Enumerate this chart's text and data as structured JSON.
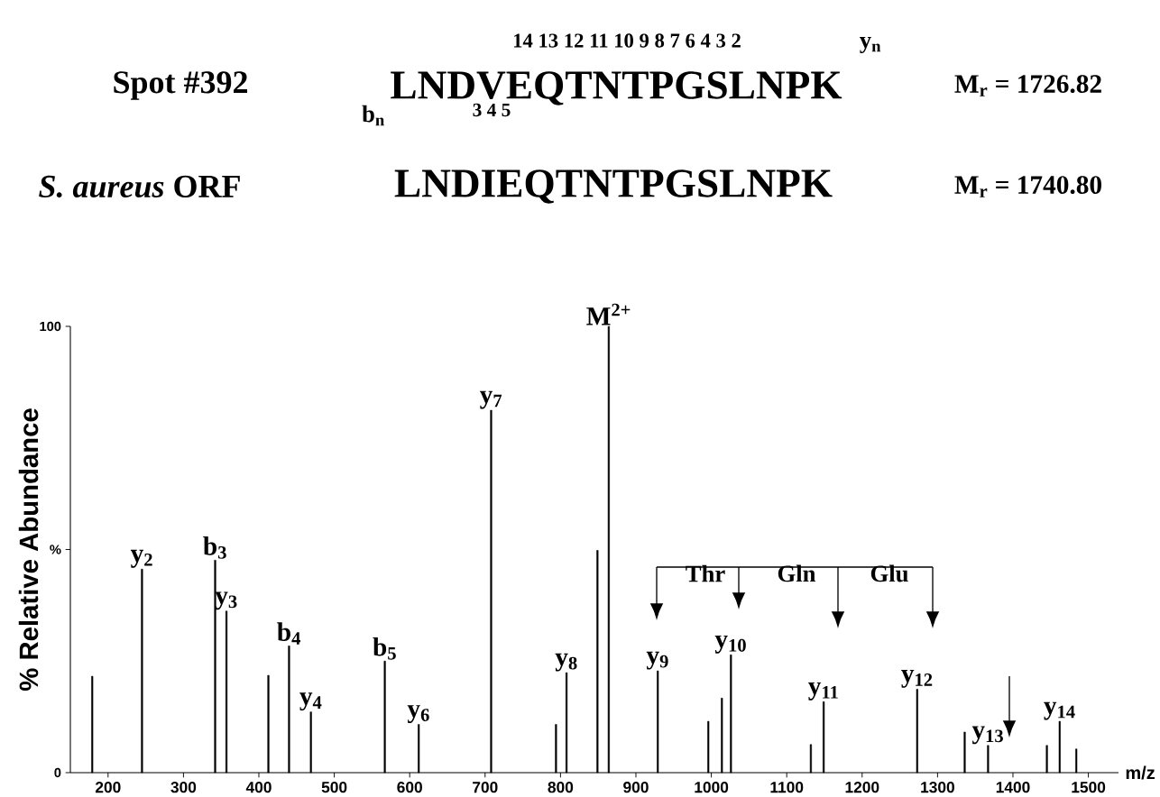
{
  "chart_data": {
    "type": "bar",
    "xlabel": "m/z",
    "ylabel": "% Relative Abundance",
    "x": [
      179,
      245,
      342,
      357,
      412.6,
      440,
      469,
      567,
      612,
      708,
      794,
      808,
      849,
      864,
      929,
      996,
      1014,
      1026,
      1132,
      1149,
      1273,
      1336,
      1367,
      1445,
      1462,
      1484
    ],
    "values": [
      21.6,
      45.6,
      47.6,
      36.2,
      21.8,
      28.4,
      13.6,
      25,
      10.8,
      81.2,
      10.8,
      22.4,
      49.8,
      100,
      22.8,
      11.5,
      16.7,
      26.4,
      6.3,
      15.9,
      18.7,
      9.1,
      6.1,
      6.1,
      11.5,
      5.3
    ],
    "color": "#000000",
    "xlim": [
      150,
      1540
    ],
    "ylim": [
      0,
      100
    ],
    "xticks": [
      200,
      300,
      400,
      500,
      600,
      700,
      800,
      900,
      1000,
      1100,
      1200,
      1300,
      1400,
      1500
    ],
    "yticks": [
      0,
      {
        "value": 50,
        "label": "%"
      },
      100
    ],
    "annotations": [
      "Spot #392",
      "LNDVEQTNTPGSLNPK",
      "14 13 12 11 10 9 8 7 6  4  3  2",
      "3 4 5",
      "b$_{n}$",
      "y$_{n}$",
      "M$_{r}$ = 1726.82",
      "*S. aureus* ORF",
      "LNDIEQTNTPGSLNPK",
      "M$_{r}$ = 1740.80",
      "Thr",
      "Gln",
      "Glu",
      {
        "text": "y$_{2}$",
        "x": 245,
        "y": 45.6
      },
      {
        "text": "b$_{3}$",
        "x": 342,
        "y": 47.6
      },
      {
        "text": "y$_{3}$",
        "x": 357,
        "y": 36.2
      },
      {
        "text": "b$_{4}$",
        "x": 440,
        "y": 28.4
      },
      {
        "text": "y$_{4}$",
        "x": 469,
        "y": 13.6
      },
      {
        "text": "b$_{5}$",
        "x": 567,
        "y": 25
      },
      {
        "text": "y$_{6}$",
        "x": 612,
        "y": 10.8
      },
      {
        "text": "y$_{7}$",
        "x": 708,
        "y": 81.2
      },
      {
        "text": "y$_{8}$",
        "x": 808,
        "y": 22.4
      },
      {
        "text": "M$^{2+}$",
        "x": 864,
        "y": 100
      },
      {
        "text": "y$_{9}$",
        "x": 929,
        "y": 22.8
      },
      {
        "text": "y$_{10}$",
        "x": 1026,
        "y": 26.4
      },
      {
        "text": "y$_{11}$",
        "x": 1149,
        "y": 15.9
      },
      {
        "text": "y$_{12}$",
        "x": 1273,
        "y": 18.7
      },
      {
        "text": "y$_{13}$",
        "x": 1367,
        "y": 6.1
      },
      {
        "text": "y$_{14}$",
        "x": 1462,
        "y": 11.5
      }
    ]
  }
}
